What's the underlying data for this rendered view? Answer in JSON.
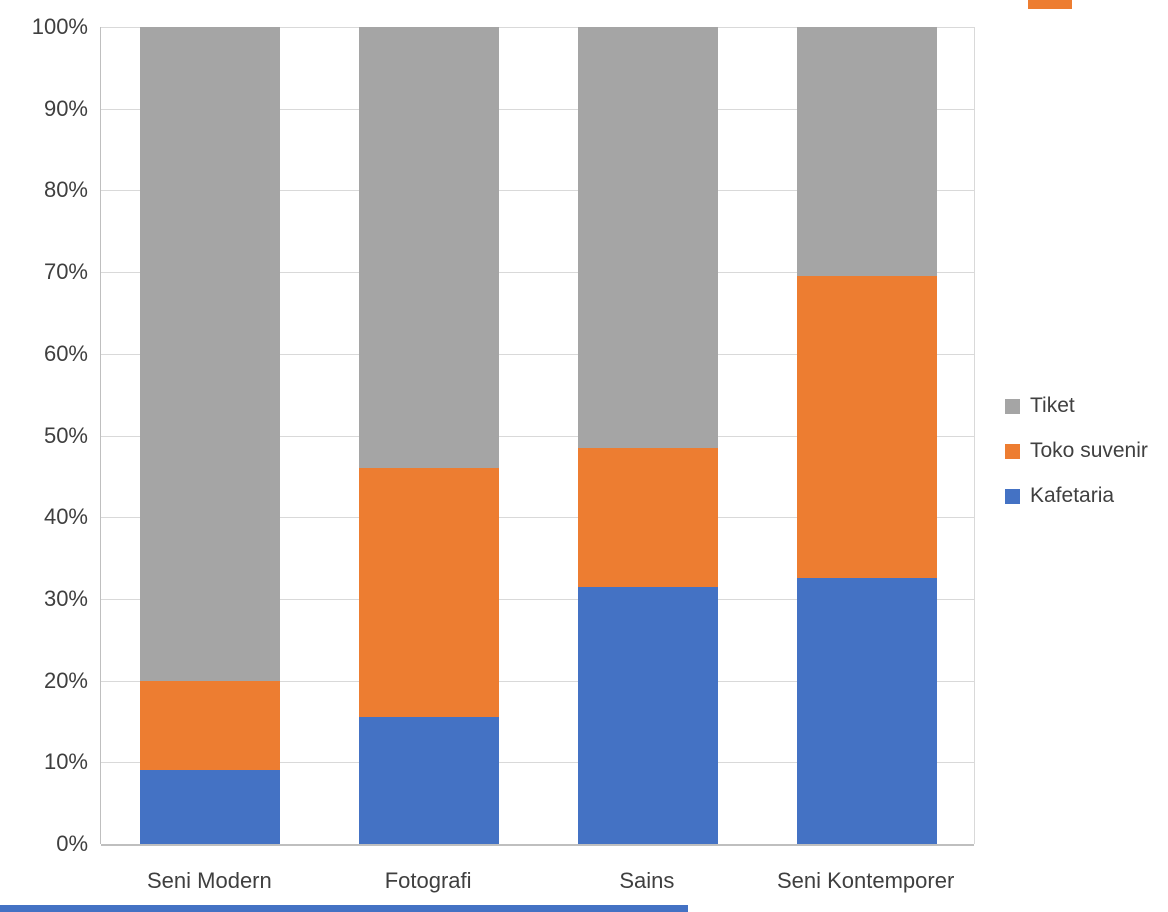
{
  "chart_data": {
    "type": "bar",
    "variant": "stacked-percent",
    "title": "",
    "xlabel": "",
    "ylabel": "",
    "categories": [
      "Seni Modern",
      "Fotografi",
      "Sains",
      "Seni Kontemporer"
    ],
    "series": [
      {
        "name": "Kafetaria",
        "color": "#4472C4",
        "values": [
          9,
          15.5,
          31.5,
          32.5
        ]
      },
      {
        "name": "Toko suvenir",
        "color": "#ED7D31",
        "values": [
          11,
          30.5,
          17,
          37
        ]
      },
      {
        "name": "Tiket",
        "color": "#A5A5A5",
        "values": [
          80,
          54,
          51.5,
          30.5
        ]
      }
    ],
    "ylim": [
      0,
      100
    ],
    "y_ticks": [
      "100%",
      "90%",
      "80%",
      "70%",
      "60%",
      "50%",
      "40%",
      "30%",
      "20%",
      "10%",
      "0%"
    ],
    "grid": true,
    "legend": [
      "Tiket",
      "Toko suvenir",
      "Kafetaria"
    ],
    "legend_position": "right"
  },
  "artifacts": {
    "top_edge_fragment_color": "#ED7D31",
    "bottom_edge_fragment_color": "#4472C4"
  },
  "colors": {
    "background": "#FFFFFF",
    "gridline": "#D9D9D9",
    "axis_line": "#BFBFBF",
    "tick_text": "#3F3F3F",
    "legend_text": "#404040"
  }
}
